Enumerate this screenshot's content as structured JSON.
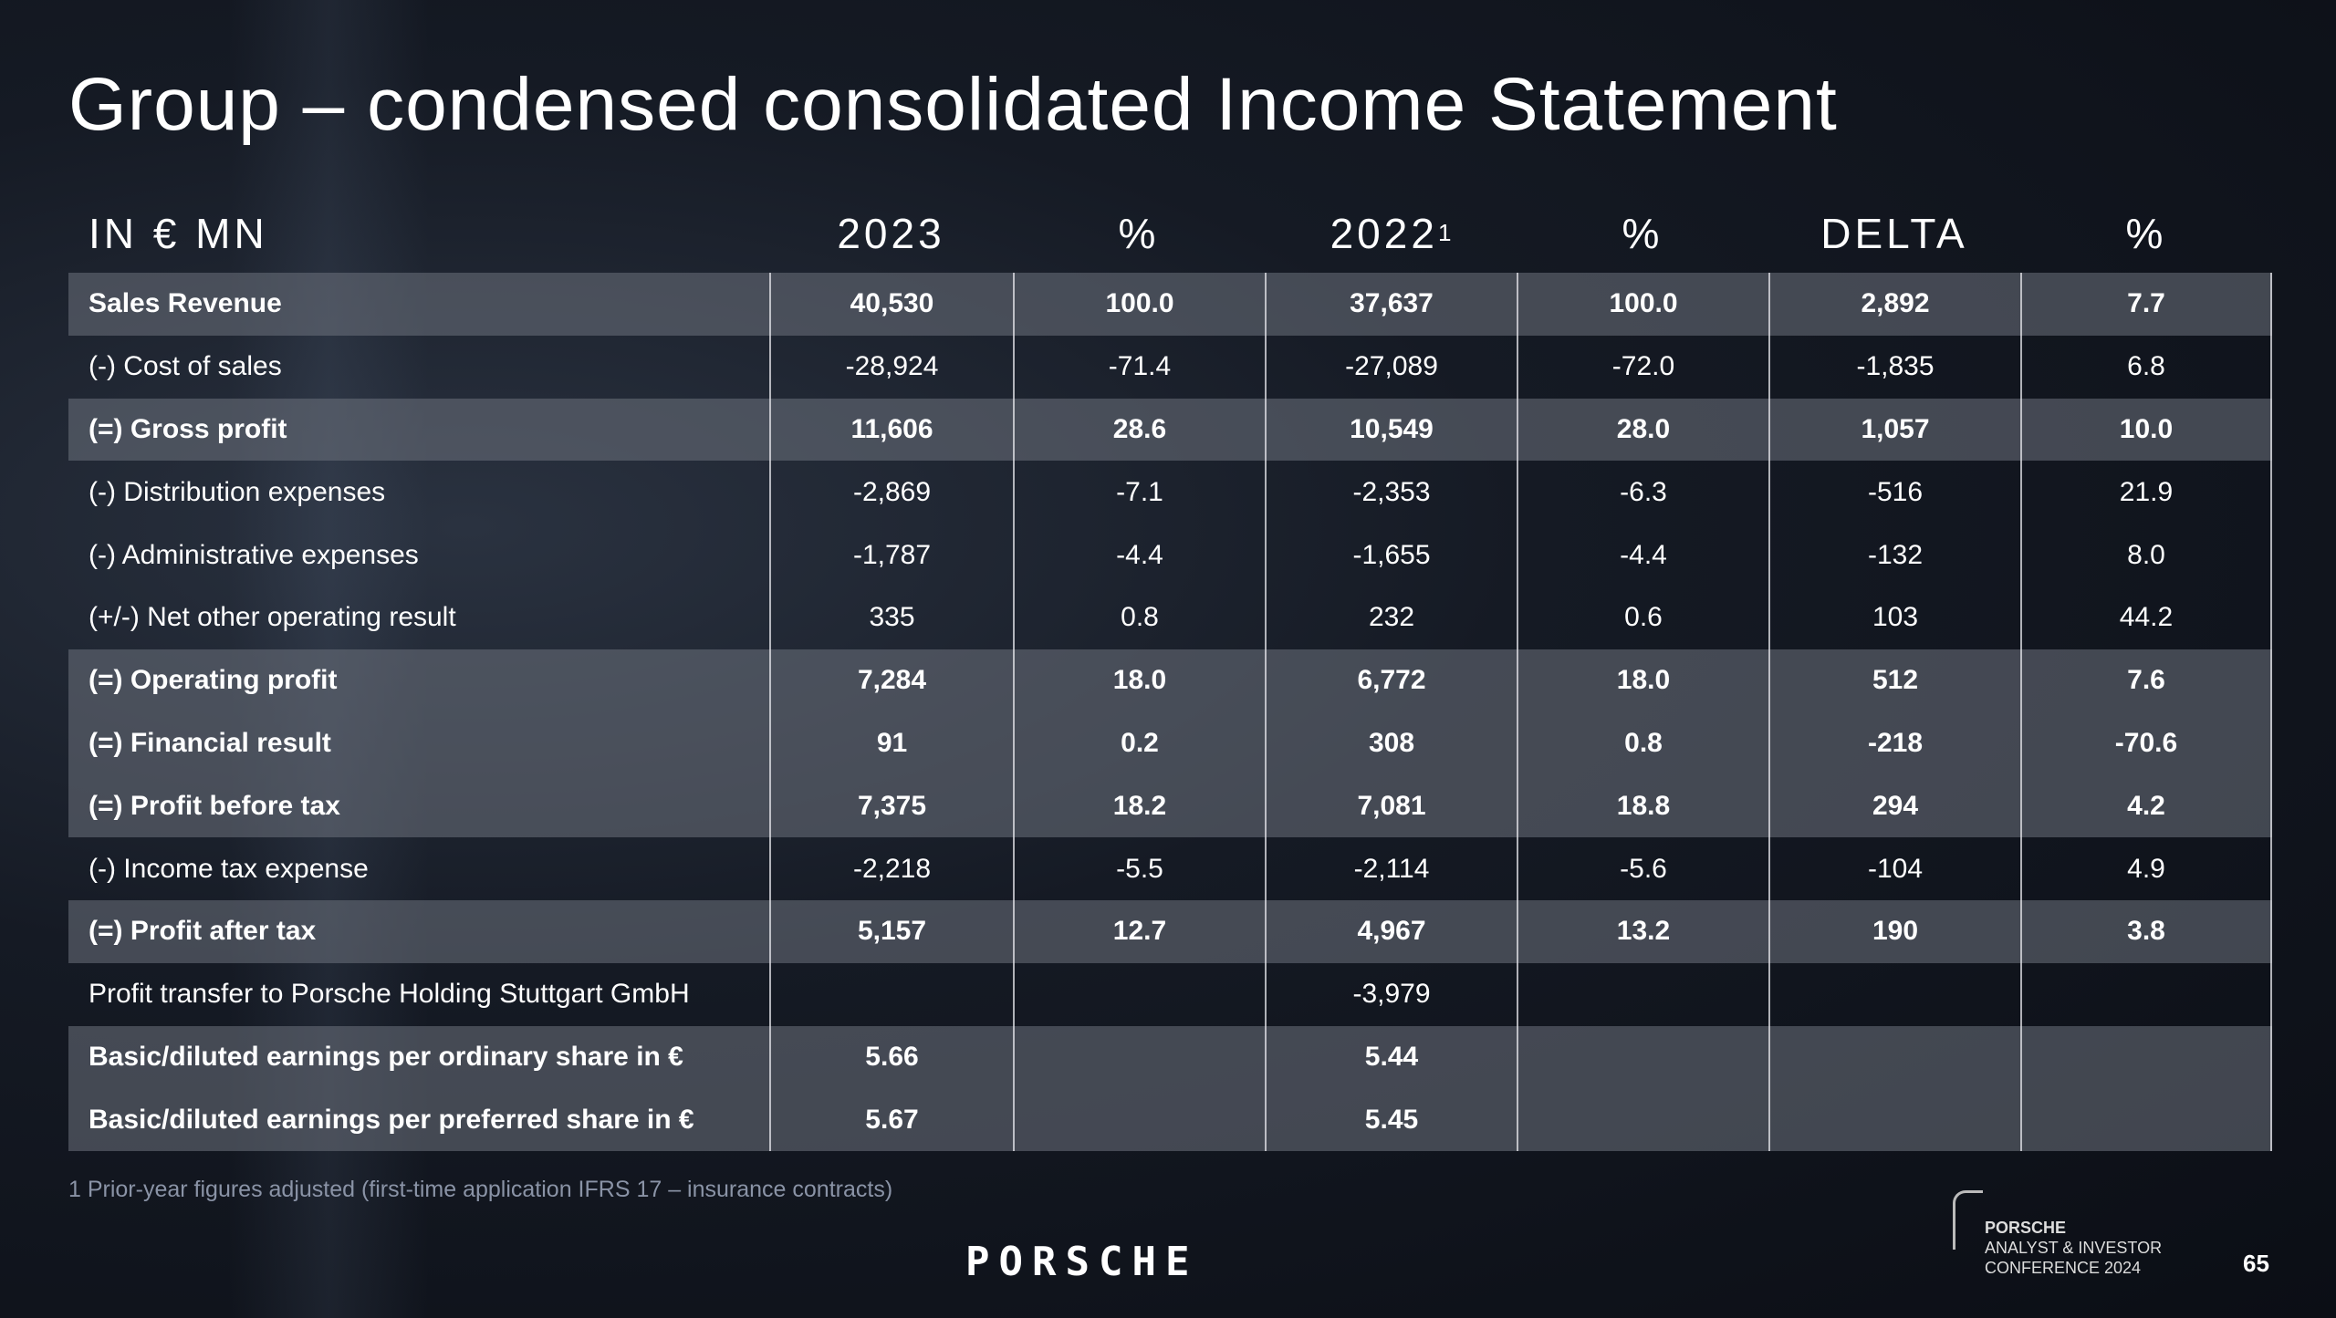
{
  "title": "Group – condensed consolidated Income Statement",
  "header": {
    "label": "IN € MN",
    "cols": [
      "2023",
      "%",
      "2022",
      "%",
      "DELTA",
      "%"
    ],
    "sup": "1"
  },
  "rows": [
    {
      "label": "Sales Revenue",
      "v": [
        "40,530",
        "100.0",
        "37,637",
        "100.0",
        "2,892",
        "7.7"
      ],
      "shade": true,
      "bold": true
    },
    {
      "label": "(-) Cost of sales",
      "v": [
        "-28,924",
        "-71.4",
        "-27,089",
        "-72.0",
        "-1,835",
        "6.8"
      ]
    },
    {
      "label": "(=) Gross profit",
      "v": [
        "11,606",
        "28.6",
        "10,549",
        "28.0",
        "1,057",
        "10.0"
      ],
      "shade": true,
      "bold": true
    },
    {
      "label": "(-) Distribution expenses",
      "v": [
        "-2,869",
        "-7.1",
        "-2,353",
        "-6.3",
        "-516",
        "21.9"
      ]
    },
    {
      "label": "(-) Administrative expenses",
      "v": [
        "-1,787",
        "-4.4",
        "-1,655",
        "-4.4",
        "-132",
        "8.0"
      ]
    },
    {
      "label": "(+/-) Net other operating result",
      "v": [
        "335",
        "0.8",
        "232",
        "0.6",
        "103",
        "44.2"
      ]
    },
    {
      "label": "(=) Operating profit",
      "v": [
        "7,284",
        "18.0",
        "6,772",
        "18.0",
        "512",
        "7.6"
      ],
      "shade": true,
      "bold": true
    },
    {
      "label": "(=) Financial result",
      "v": [
        "91",
        "0.2",
        "308",
        "0.8",
        "-218",
        "-70.6"
      ],
      "shade": true,
      "bold": true
    },
    {
      "label": "(=) Profit before tax",
      "v": [
        "7,375",
        "18.2",
        "7,081",
        "18.8",
        "294",
        "4.2"
      ],
      "shade": true,
      "bold": true
    },
    {
      "label": "(-) Income tax expense",
      "v": [
        "-2,218",
        "-5.5",
        "-2,114",
        "-5.6",
        "-104",
        "4.9"
      ]
    },
    {
      "label": "(=) Profit after tax",
      "v": [
        "5,157",
        "12.7",
        "4,967",
        "13.2",
        "190",
        "3.8"
      ],
      "shade": true,
      "bold": true
    },
    {
      "label": "Profit transfer to Porsche Holding Stuttgart GmbH",
      "v": [
        "",
        "",
        "-3,979",
        "",
        "",
        ""
      ]
    },
    {
      "label": "Basic/diluted earnings per ordinary share in €",
      "v": [
        "5.66",
        "",
        "5.44",
        "",
        "",
        ""
      ],
      "shade": true,
      "bold": true
    },
    {
      "label": "Basic/diluted earnings per preferred share in €",
      "v": [
        "5.67",
        "",
        "5.45",
        "",
        "",
        ""
      ],
      "shade": true,
      "bold": true
    }
  ],
  "footnote": "1 Prior-year figures adjusted (first-time application IFRS 17 – insurance contracts)",
  "logo": "PORSCHE",
  "conference": {
    "line1": "PORSCHE",
    "line2": "ANALYST & INVESTOR",
    "line3": "CONFERENCE 2024"
  },
  "page_number": "65"
}
